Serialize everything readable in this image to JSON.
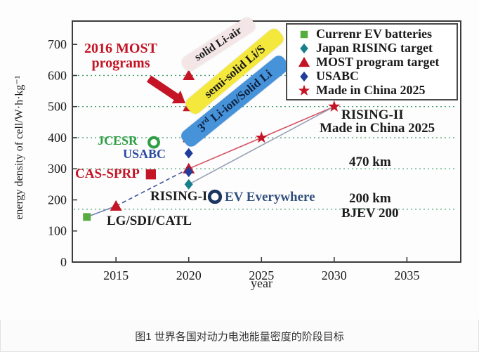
{
  "figure": {
    "caption": "图1 世界各国对动力电池能量密度的阶段目标"
  },
  "colors": {
    "red": "#c41425",
    "green": "#56ad3f",
    "green_text": "#2f9e44",
    "teal": "#17808a",
    "navy": "#1f3d99",
    "navy_text": "#2a4aa0",
    "steel_text": "#32507e",
    "dark": "#1c1c1c",
    "axis": "#3c3c3c",
    "grid": "#43a06e",
    "label_pink_bg": "#f4e6e6",
    "label_yellow_bg": "#f4e83c",
    "label_blue_bg": "#4793da"
  },
  "chart_data": {
    "type": "scatter",
    "title": "",
    "xlabel": "year",
    "ylabel": "energy density of cell/W·h·kg⁻¹",
    "x_range": [
      2012,
      2038.7
    ],
    "y_range": [
      0,
      775
    ],
    "x_ticks": [
      2015,
      2020,
      2025,
      2030,
      2035
    ],
    "y_ticks": [
      0,
      100,
      200,
      300,
      400,
      500,
      600,
      700
    ],
    "gridlines_y": [
      600,
      500,
      400,
      300,
      170
    ],
    "grid_style": "green dotted horizontal",
    "legend_position": "top-right",
    "series": [
      {
        "name": "Currenr EV batteries",
        "marker": "square",
        "color": "#56ad3f",
        "points": [
          [
            2013,
            145
          ]
        ]
      },
      {
        "name": "Japan RISING target",
        "marker": "diamond",
        "color": "#17808a",
        "points": [
          [
            2020,
            250
          ]
        ]
      },
      {
        "name": "MOST program target",
        "marker": "triangle",
        "color": "#c41425",
        "points": [
          [
            2015,
            180
          ],
          [
            2020,
            300
          ],
          [
            2020,
            400
          ],
          [
            2020,
            500
          ],
          [
            2020,
            600
          ]
        ]
      },
      {
        "name": "USABC",
        "marker": "diamond",
        "color": "#1f3d99",
        "points": [
          [
            2020,
            350
          ],
          [
            2020,
            290
          ]
        ]
      },
      {
        "name": "Made in China 2025",
        "marker": "star",
        "color": "#c41425",
        "points": [
          [
            2025,
            400
          ],
          [
            2030,
            500
          ]
        ]
      }
    ],
    "extra_markers": [
      {
        "name": "JCESR",
        "marker": "circle-open",
        "color": "#2f9e44",
        "point": [
          2017.6,
          385
        ],
        "scale": 1.1
      },
      {
        "name": "EV Everywhere",
        "marker": "circle-open",
        "color": "#1a3560",
        "point": [
          2021.8,
          210
        ],
        "scale": 1.25
      },
      {
        "name": "CAS-SPRP",
        "marker": "square",
        "color": "#c41425",
        "point": [
          2017.4,
          282
        ],
        "scale": 1.3
      }
    ],
    "lines": [
      {
        "style": "solid",
        "color": "#6c7cac",
        "points": [
          [
            2013,
            145
          ],
          [
            2015,
            180
          ]
        ]
      },
      {
        "style": "dashed",
        "color": "#44549a",
        "points": [
          [
            2015,
            180
          ],
          [
            2020,
            300
          ]
        ]
      },
      {
        "style": "solid",
        "color": "#d4505e",
        "points": [
          [
            2020,
            300
          ],
          [
            2025,
            400
          ],
          [
            2030,
            500
          ]
        ]
      },
      {
        "style": "solid",
        "color": "#97a1b4",
        "points": [
          [
            2020,
            250
          ],
          [
            2030,
            500
          ]
        ]
      }
    ],
    "annotations": {
      "most_line1": "2016 MOST",
      "most_line2": "programs",
      "solid_li_air": "solid Li-air",
      "semi_solid_lis": "semi-solid Li/S",
      "li_ion_prefix": "3",
      "li_ion_sup": "rd",
      "li_ion_rest": " Li-ion/Solid Li",
      "jcesr": "JCESR",
      "usabc": "USABC",
      "cas_sprp": "CAS-SPRP",
      "rising_1": "RISING-I",
      "ev_everywhere": "EV Everywhere",
      "lg_sdi_catl": "LG/SDI/CATL",
      "rising_2": "RISING-II",
      "made_in_china": "Made in China 2025",
      "km_470": "470 km",
      "km_200": "200 km",
      "bjev_200": "BJEV 200"
    }
  }
}
